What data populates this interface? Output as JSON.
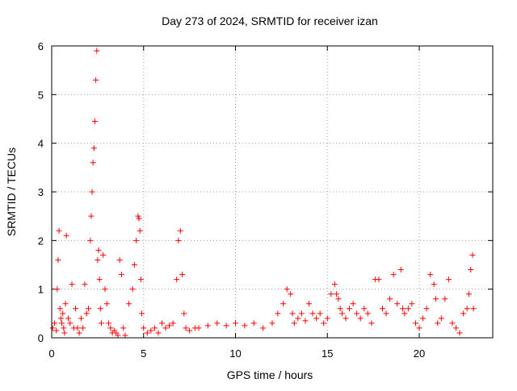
{
  "chart_data": {
    "type": "scatter",
    "title": "Day 273 of 2024, SRMTID for receiver izan",
    "xlabel": "GPS time / hours",
    "ylabel": "SRMTID / TECUs",
    "xlim": [
      0,
      24
    ],
    "ylim": [
      0,
      6
    ],
    "x_ticks": [
      "0",
      "5",
      "10",
      "15",
      "20"
    ],
    "y_ticks": [
      "0",
      "1",
      "2",
      "3",
      "4",
      "5",
      "6"
    ],
    "grid": true,
    "marker": "+",
    "color": "#ff0000",
    "series": [
      {
        "name": "SRMTID",
        "x": [
          0.05,
          0.15,
          0.25,
          0.3,
          0.35,
          0.4,
          0.45,
          0.5,
          0.55,
          0.6,
          0.65,
          0.7,
          0.75,
          0.8,
          0.9,
          1.0,
          1.1,
          1.2,
          1.3,
          1.4,
          1.5,
          1.6,
          1.7,
          1.8,
          1.9,
          2.0,
          2.1,
          2.15,
          2.2,
          2.25,
          2.3,
          2.35,
          2.4,
          2.45,
          2.5,
          2.55,
          2.6,
          2.65,
          2.7,
          2.8,
          2.9,
          3.0,
          3.1,
          3.2,
          3.3,
          3.4,
          3.5,
          3.6,
          3.7,
          3.8,
          3.9,
          4.0,
          4.2,
          4.4,
          4.5,
          4.6,
          4.7,
          4.75,
          4.8,
          4.85,
          4.9,
          5.0,
          5.2,
          5.4,
          5.6,
          5.8,
          6.0,
          6.2,
          6.4,
          6.6,
          6.8,
          6.9,
          7.0,
          7.1,
          7.2,
          7.3,
          7.5,
          7.8,
          8.0,
          8.5,
          9.0,
          9.5,
          10.0,
          10.5,
          11.0,
          11.5,
          12.0,
          12.3,
          12.6,
          12.8,
          13.0,
          13.1,
          13.2,
          13.4,
          13.6,
          13.8,
          14.0,
          14.2,
          14.4,
          14.6,
          14.8,
          15.0,
          15.2,
          15.4,
          15.5,
          15.6,
          15.7,
          15.8,
          16.0,
          16.2,
          16.4,
          16.6,
          16.8,
          17.0,
          17.2,
          17.4,
          17.6,
          17.8,
          18.0,
          18.2,
          18.4,
          18.6,
          18.8,
          19.0,
          19.1,
          19.2,
          19.4,
          19.6,
          19.8,
          20.0,
          20.2,
          20.4,
          20.6,
          20.8,
          20.9,
          21.0,
          21.2,
          21.4,
          21.6,
          21.8,
          22.0,
          22.2,
          22.4,
          22.6,
          22.7,
          22.8,
          22.9,
          22.95
        ],
        "y": [
          0.2,
          0.3,
          0.15,
          1.0,
          1.6,
          2.2,
          0.6,
          0.4,
          0.3,
          0.5,
          0.2,
          0.1,
          0.7,
          2.1,
          0.4,
          0.3,
          1.1,
          0.2,
          0.6,
          0.2,
          0.1,
          0.4,
          0.2,
          1.1,
          0.5,
          0.6,
          2.0,
          2.5,
          3.0,
          3.6,
          3.9,
          4.45,
          5.3,
          5.9,
          1.6,
          1.8,
          1.2,
          0.6,
          0.3,
          1.7,
          1.0,
          0.7,
          0.3,
          0.2,
          0.1,
          0.15,
          0.1,
          0.05,
          1.6,
          1.3,
          0.2,
          0.05,
          0.7,
          1.0,
          1.5,
          2.0,
          2.5,
          2.45,
          2.2,
          1.2,
          0.5,
          0.2,
          0.1,
          0.15,
          0.2,
          0.1,
          0.3,
          0.2,
          0.25,
          0.3,
          1.2,
          2.0,
          2.2,
          1.3,
          0.5,
          0.2,
          0.15,
          0.2,
          0.2,
          0.25,
          0.3,
          0.25,
          0.3,
          0.25,
          0.3,
          0.2,
          0.3,
          0.5,
          0.7,
          1.0,
          0.9,
          0.5,
          0.3,
          0.4,
          0.5,
          0.35,
          0.7,
          0.5,
          0.4,
          0.5,
          0.3,
          0.4,
          0.9,
          1.1,
          0.9,
          0.8,
          0.6,
          0.5,
          0.4,
          0.6,
          0.7,
          0.5,
          0.4,
          0.6,
          0.5,
          0.3,
          1.2,
          1.2,
          0.6,
          0.5,
          0.8,
          1.3,
          0.7,
          1.4,
          0.6,
          0.5,
          0.6,
          0.7,
          0.3,
          0.2,
          0.4,
          0.6,
          1.3,
          1.1,
          0.8,
          0.3,
          0.4,
          0.8,
          1.2,
          0.3,
          0.2,
          0.1,
          0.5,
          0.6,
          0.9,
          1.4,
          1.7,
          0.6
        ]
      }
    ]
  }
}
